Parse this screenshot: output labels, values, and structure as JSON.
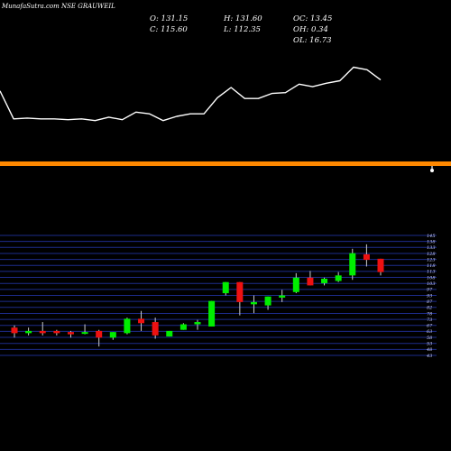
{
  "watermark": "MunafaSutra.com NSE GRAUWEIL",
  "ohlc": {
    "open": "O: 131.15",
    "high": "H: 131.60",
    "oc": "OC: 13.45",
    "close": "C: 115.60",
    "low": "L: 112.35",
    "oh": "OH: 0.34",
    "ol": "OL: 16.73"
  },
  "colors": {
    "background": "#000000",
    "line": "#ffffff",
    "divider": "#ff8800",
    "grid": "#1d2c8c",
    "up": "#00ee00",
    "down": "#ee1111",
    "wick": "#cccccc"
  },
  "chart_data": [
    {
      "type": "line",
      "panel": "price-line",
      "y": [
        113,
        80,
        81,
        80,
        80,
        79,
        80,
        78,
        82,
        79,
        88,
        86,
        78,
        83,
        86,
        86,
        105,
        117,
        104,
        104,
        110,
        111,
        121,
        118,
        122,
        125,
        141,
        138,
        126
      ],
      "ylim": [
        50,
        150
      ],
      "grid": false
    },
    {
      "type": "candlestick",
      "panel": "price-candles",
      "y_ticks": [
        "145",
        "138",
        "133",
        "128",
        "123",
        "118",
        "113",
        "108",
        "103",
        "97",
        "93",
        "87",
        "82",
        "78",
        "73",
        "67",
        "63",
        "58",
        "53",
        "48",
        "43"
      ],
      "ylim": [
        40,
        148
      ],
      "grid": true,
      "candles": [
        {
          "o": 65,
          "h": 67,
          "l": 56,
          "c": 60
        },
        {
          "o": 60,
          "h": 65,
          "l": 58,
          "c": 62
        },
        {
          "o": 62,
          "h": 70,
          "l": 58,
          "c": 60
        },
        {
          "o": 62,
          "h": 63,
          "l": 58,
          "c": 60
        },
        {
          "o": 61,
          "h": 62,
          "l": 56,
          "c": 59
        },
        {
          "o": 60,
          "h": 68,
          "l": 59,
          "c": 61
        },
        {
          "o": 62,
          "h": 63,
          "l": 48,
          "c": 56
        },
        {
          "o": 56,
          "h": 61,
          "l": 54,
          "c": 61
        },
        {
          "o": 60,
          "h": 74,
          "l": 59,
          "c": 73
        },
        {
          "o": 73,
          "h": 80,
          "l": 62,
          "c": 69
        },
        {
          "o": 70,
          "h": 74,
          "l": 55,
          "c": 58
        },
        {
          "o": 57,
          "h": 62,
          "l": 57,
          "c": 62
        },
        {
          "o": 63,
          "h": 69,
          "l": 63,
          "c": 68
        },
        {
          "o": 68,
          "h": 72,
          "l": 63,
          "c": 70
        },
        {
          "o": 66,
          "h": 89,
          "l": 66,
          "c": 89
        },
        {
          "o": 96,
          "h": 106,
          "l": 94,
          "c": 106
        },
        {
          "o": 106,
          "h": 106,
          "l": 76,
          "c": 88
        },
        {
          "o": 86,
          "h": 94,
          "l": 78,
          "c": 88
        },
        {
          "o": 85,
          "h": 93,
          "l": 81,
          "c": 93
        },
        {
          "o": 92,
          "h": 99,
          "l": 88,
          "c": 94
        },
        {
          "o": 97,
          "h": 114,
          "l": 96,
          "c": 110
        },
        {
          "o": 110,
          "h": 116,
          "l": 103,
          "c": 103
        },
        {
          "o": 105,
          "h": 110,
          "l": 103,
          "c": 109
        },
        {
          "o": 107,
          "h": 115,
          "l": 106,
          "c": 112
        },
        {
          "o": 112,
          "h": 136,
          "l": 108,
          "c": 132
        },
        {
          "o": 131,
          "h": 140,
          "l": 120,
          "c": 126
        },
        {
          "o": 127,
          "h": 127,
          "l": 112,
          "c": 115
        }
      ]
    }
  ]
}
